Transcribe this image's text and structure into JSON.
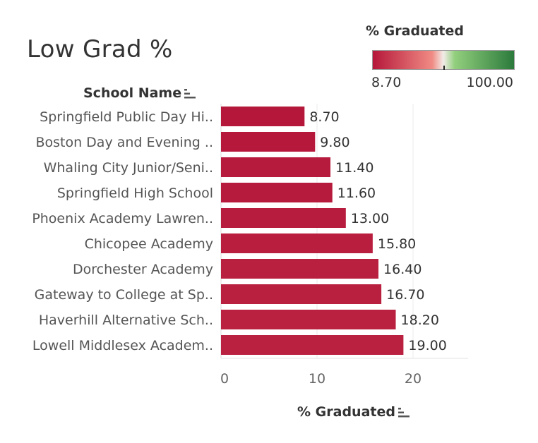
{
  "chart_data": {
    "type": "bar",
    "orientation": "horizontal",
    "title": "Low Grad %",
    "xlabel": "% Graduated",
    "ylabel": "School Name",
    "categories": [
      "Springfield Public Day Hi..",
      "Boston Day and Evening ..",
      "Whaling City Junior/Seni..",
      "Springfield High School",
      "Phoenix Academy Lawren..",
      "Chicopee Academy",
      "Dorchester Academy",
      "Gateway to College at Sp..",
      "Haverhill Alternative Sch..",
      "Lowell Middlesex Academ.."
    ],
    "values": [
      8.7,
      9.8,
      11.4,
      11.6,
      13.0,
      15.8,
      16.4,
      16.7,
      18.2,
      19.0
    ],
    "value_labels": [
      "8.70",
      "9.80",
      "11.40",
      "11.60",
      "13.00",
      "15.80",
      "16.40",
      "16.70",
      "18.20",
      "19.00"
    ],
    "xlim": [
      0,
      25
    ],
    "x_ticks": [
      0,
      10,
      20
    ],
    "x_tick_labels": [
      "0",
      "10",
      "20"
    ],
    "grid": true,
    "color_legend": {
      "title": "% Graduated",
      "min_label": "8.70",
      "max_label": "100.00",
      "min": 8.7,
      "max": 100.0,
      "midpoint": 54.35,
      "placement": "top-right",
      "colors": {
        "low": "#b5173a",
        "mid_low": "#f08a83",
        "mid": "#f2ece8",
        "mid_high": "#92cf7d",
        "high": "#2b7a3c"
      }
    }
  }
}
